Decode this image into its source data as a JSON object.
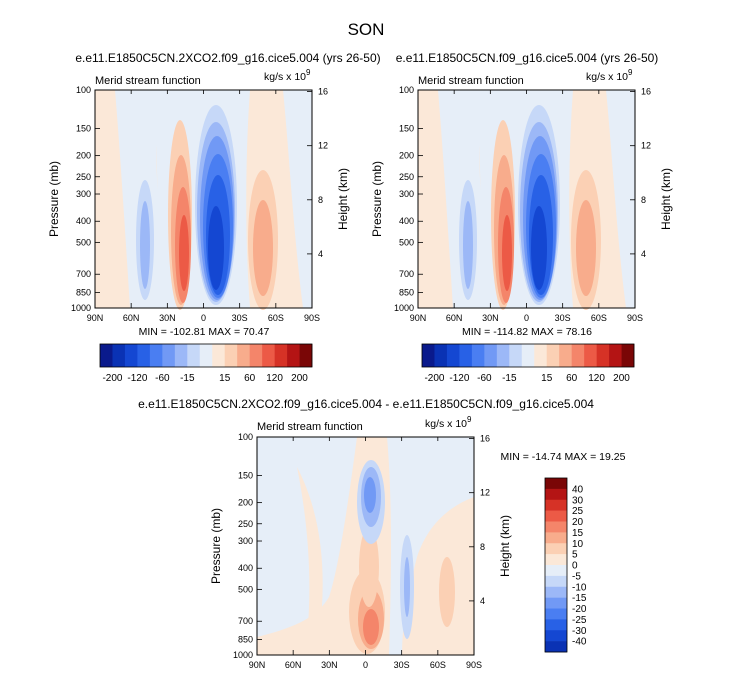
{
  "figure": {
    "season": "SON"
  },
  "panels": [
    {
      "id": "top-left",
      "title": "e.e11.E1850C5CN.2XCO2.f09_g16.cice5.004 (yrs 26-50)",
      "left_label": "Merid stream function",
      "units_prefix": "kg/s x 10",
      "units_exp": "9",
      "ylabel": "Pressure (mb)",
      "ylabel_right": "Height (km)",
      "stats": "MIN = -102.81  MAX = 70.47"
    },
    {
      "id": "top-right",
      "title": "e.e11.E1850C5CN.f09_g16.cice5.004 (yrs 26-50)",
      "left_label": "Merid stream function",
      "units_prefix": "kg/s x 10",
      "units_exp": "9",
      "ylabel": "Pressure (mb)",
      "ylabel_right": "Height (km)",
      "stats": "MIN = -114.82  MAX = 78.16"
    },
    {
      "id": "bottom",
      "title": "e.e11.E1850C5CN.2XCO2.f09_g16.cice5.004 - e.e11.E1850C5CN.f09_g16.cice5.004",
      "left_label": "Merid stream function",
      "units_prefix": "kg/s x 10",
      "units_exp": "9",
      "ylabel": "Pressure (mb)",
      "ylabel_right": "Height (km)",
      "stats": "MIN = -14.74  MAX = 19.25"
    }
  ],
  "axes": {
    "x_ticks": [
      "90N",
      "60N",
      "30N",
      "0",
      "30S",
      "60S",
      "90S"
    ],
    "y_ticks": [
      "100",
      "150",
      "200",
      "250",
      "300",
      "400",
      "500",
      "700",
      "850",
      "1000"
    ],
    "y_ticks_bottom": [
      "100",
      "150",
      "200",
      "250",
      "300",
      "400",
      "500",
      "700",
      "850",
      "1000"
    ],
    "height_ticks": [
      "16",
      "12",
      "8",
      "4"
    ],
    "height_ticks_bottom": [
      "16",
      "12",
      "8",
      "4"
    ]
  },
  "colorbars": {
    "top_labels": [
      "-200",
      "-120",
      "-60",
      "-15",
      "15",
      "60",
      "120",
      "200"
    ],
    "top_colors": [
      "#0a1a8c",
      "#0a32b4",
      "#1447d2",
      "#2861e6",
      "#4a7ef2",
      "#7199f5",
      "#9cb8f7",
      "#c6d8f8",
      "#e6eef8",
      "#fbe8d8",
      "#fbd0b4",
      "#f8ac8c",
      "#f4856a",
      "#ec5a46",
      "#d63226",
      "#b41414",
      "#7a0606"
    ],
    "bottom_labels": [
      "40",
      "30",
      "25",
      "20",
      "15",
      "10",
      "5",
      "0",
      "-5",
      "-10",
      "-15",
      "-20",
      "-25",
      "-30",
      "-40"
    ],
    "bottom_colors": [
      "#7a0606",
      "#b41414",
      "#d63226",
      "#ec5a46",
      "#f4856a",
      "#f8ac8c",
      "#fbd0b4",
      "#fbe8d8",
      "#e6eef8",
      "#c6d8f8",
      "#9cb8f7",
      "#7199f5",
      "#4a7ef2",
      "#2861e6",
      "#1447d2",
      "#0a32b4"
    ]
  },
  "chart_data": [
    {
      "type": "heatmap",
      "title": "e.e11.E1850C5CN.2XCO2.f09_g16.cice5.004 (yrs 26-50)",
      "variable": "Merid stream function",
      "units": "kg/s x 10^9",
      "xlabel": "",
      "ylabel": "Pressure (mb)",
      "y2label": "Height (km)",
      "x_ticks": [
        "90N",
        "60N",
        "30N",
        "0",
        "30S",
        "60S",
        "90S"
      ],
      "xlim": [
        90,
        -90
      ],
      "ylim": [
        1000,
        100
      ],
      "y_scale": "log",
      "min": -102.81,
      "max": 70.47,
      "cells": [
        {
          "lat": 30,
          "lev": 200,
          "value": 15
        },
        {
          "lat": 22,
          "lev": 400,
          "value": 60
        },
        {
          "lat": 5,
          "lev": 400,
          "value": -100
        },
        {
          "lat": -45,
          "lev": 450,
          "value": 30
        },
        {
          "lat": 40,
          "lev": 400,
          "value": -20
        }
      ]
    },
    {
      "type": "heatmap",
      "title": "e.e11.E1850C5CN.f09_g16.cice5.004 (yrs 26-50)",
      "variable": "Merid stream function",
      "units": "kg/s x 10^9",
      "xlabel": "",
      "ylabel": "Pressure (mb)",
      "y2label": "Height (km)",
      "x_ticks": [
        "90N",
        "60N",
        "30N",
        "0",
        "30S",
        "60S",
        "90S"
      ],
      "xlim": [
        90,
        -90
      ],
      "ylim": [
        1000,
        100
      ],
      "y_scale": "log",
      "min": -114.82,
      "max": 78.16,
      "cells": [
        {
          "lat": 30,
          "lev": 200,
          "value": 15
        },
        {
          "lat": 22,
          "lev": 400,
          "value": 70
        },
        {
          "lat": 5,
          "lev": 400,
          "value": -110
        },
        {
          "lat": -45,
          "lev": 450,
          "value": 30
        },
        {
          "lat": 40,
          "lev": 400,
          "value": -20
        }
      ]
    },
    {
      "type": "heatmap",
      "title": "e.e11.E1850C5CN.2XCO2.f09_g16.cice5.004 - e.e11.E1850C5CN.f09_g16.cice5.004",
      "variable": "Merid stream function",
      "units": "kg/s x 10^9",
      "xlabel": "",
      "ylabel": "Pressure (mb)",
      "y2label": "Height (km)",
      "x_ticks": [
        "90N",
        "60N",
        "30N",
        "0",
        "30S",
        "60S",
        "90S"
      ],
      "xlim": [
        90,
        -90
      ],
      "ylim": [
        1000,
        100
      ],
      "y_scale": "log",
      "min": -14.74,
      "max": 19.25,
      "cells": [
        {
          "lat": 0,
          "lev": 700,
          "value": 15
        },
        {
          "lat": 0,
          "lev": 180,
          "value": -10
        },
        {
          "lat": -25,
          "lev": 600,
          "value": -5
        },
        {
          "lat": 45,
          "lev": 500,
          "value": 5
        }
      ]
    }
  ]
}
